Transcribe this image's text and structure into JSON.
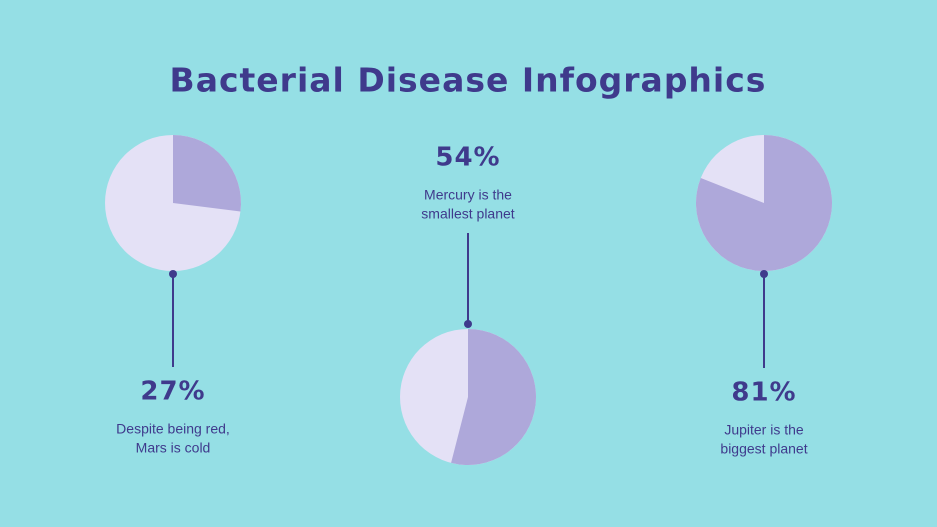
{
  "title": "Bacterial Disease Infographics",
  "chart_data": [
    {
      "type": "pie",
      "values": [
        27
      ],
      "value_labels": [
        "27%"
      ],
      "color": "#aea8da",
      "rest_color": "#e4e1f6",
      "description": [
        "Despite being red,",
        "Mars is cold"
      ]
    },
    {
      "type": "pie",
      "values": [
        54
      ],
      "value_labels": [
        "54%"
      ],
      "color": "#aea8da",
      "rest_color": "#e4e1f6",
      "description": [
        "Mercury is the",
        "smallest planet"
      ]
    },
    {
      "type": "pie",
      "values": [
        81
      ],
      "value_labels": [
        "81%"
      ],
      "color": "#aea8da",
      "rest_color": "#e4e1f6",
      "description": [
        "Jupiter is the",
        "biggest planet"
      ]
    }
  ]
}
